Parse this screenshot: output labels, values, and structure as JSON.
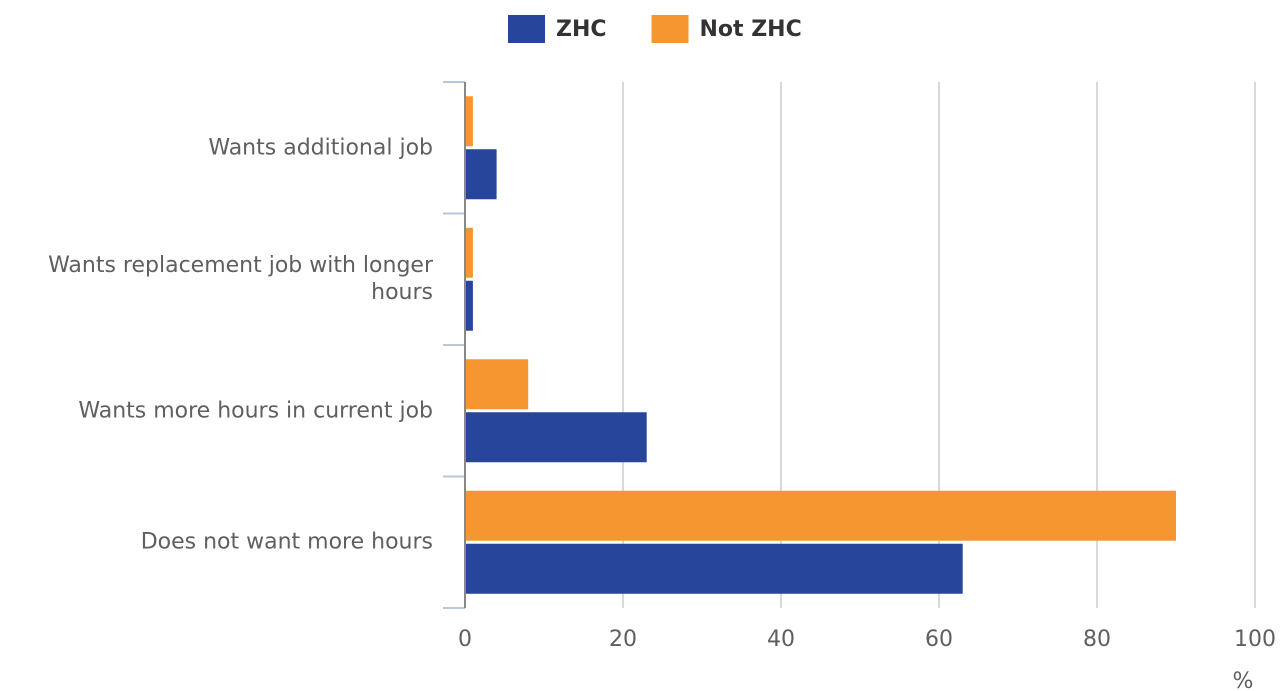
{
  "chart_data": {
    "type": "bar",
    "orientation": "horizontal",
    "categories": [
      "Wants additional job",
      "Wants replacement job with longer hours",
      "Wants more hours in current job",
      "Does not want more hours"
    ],
    "series": [
      {
        "name": "ZHC",
        "color": "#27459a",
        "values": [
          4,
          1,
          23,
          63
        ]
      },
      {
        "name": "Not ZHC",
        "color": "#f59631",
        "values": [
          1,
          1,
          8,
          90
        ]
      }
    ],
    "xlabel": "%",
    "xlim": [
      0,
      100
    ],
    "xticks": [
      0,
      20,
      40,
      60,
      80,
      100
    ],
    "grid": true,
    "legend": "top"
  }
}
